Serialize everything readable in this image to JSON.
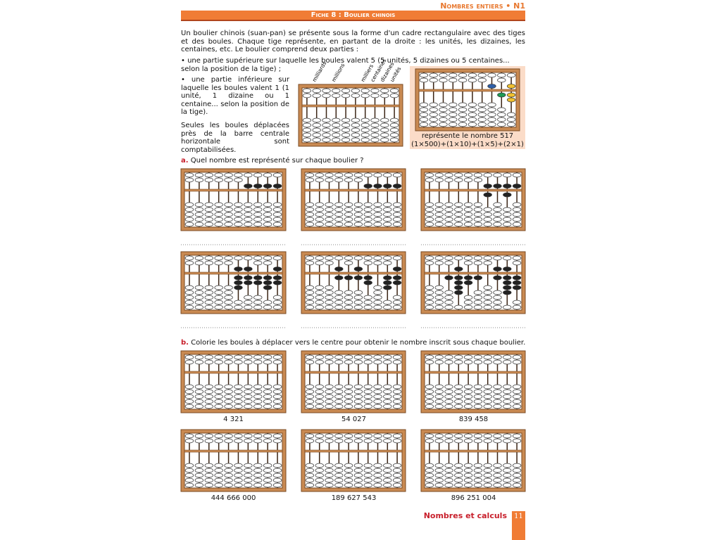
{
  "header": {
    "section": "Nombres entiers • N1",
    "title": "Fiche 8 : Boulier chinois"
  },
  "intro": {
    "paragraph": "Un boulier chinois (suan-pan) se présente sous la forme d'un cadre rectangulaire avec des tiges et des boules. Chaque tige représente, en partant de la droite : les unités, les dizaines, les centaines, etc. Le boulier comprend deux parties :",
    "bullets": [
      "• une partie supérieure sur laquelle les boules valent 5 (5 unités, 5 dizaines ou 5 centaines... selon la position de la tige) ;",
      "• une partie inférieure sur laquelle les boules valent 1 (1 unité, 1 dizaine ou 1 centaine... selon la position de la tige)."
    ],
    "note": "Seules les boules déplacées près de la barre centrale horizontale sont comptabilisées.",
    "rod_labels": [
      "milliards",
      "millions",
      "milliers",
      "centaines",
      "dizaines",
      "unités"
    ],
    "example_caption": "représente le nombre 517",
    "example_formula": "(1×500)+(1×10)+(1×5)+(2×1)"
  },
  "exercise_a": {
    "letter": "a.",
    "instruction": "Quel nombre est représenté sur chaque boulier ?"
  },
  "exercise_b": {
    "letter": "b.",
    "instruction": "Colorie les boules à déplacer vers le centre pour obtenir le nombre inscrit sous chaque boulier.",
    "numbers": [
      "4 321",
      "54 027",
      "839 458",
      "444 666 000",
      "189 627 543",
      "896 251 004"
    ]
  },
  "footer": {
    "section": "Nombres et calculs",
    "page": "11"
  }
}
